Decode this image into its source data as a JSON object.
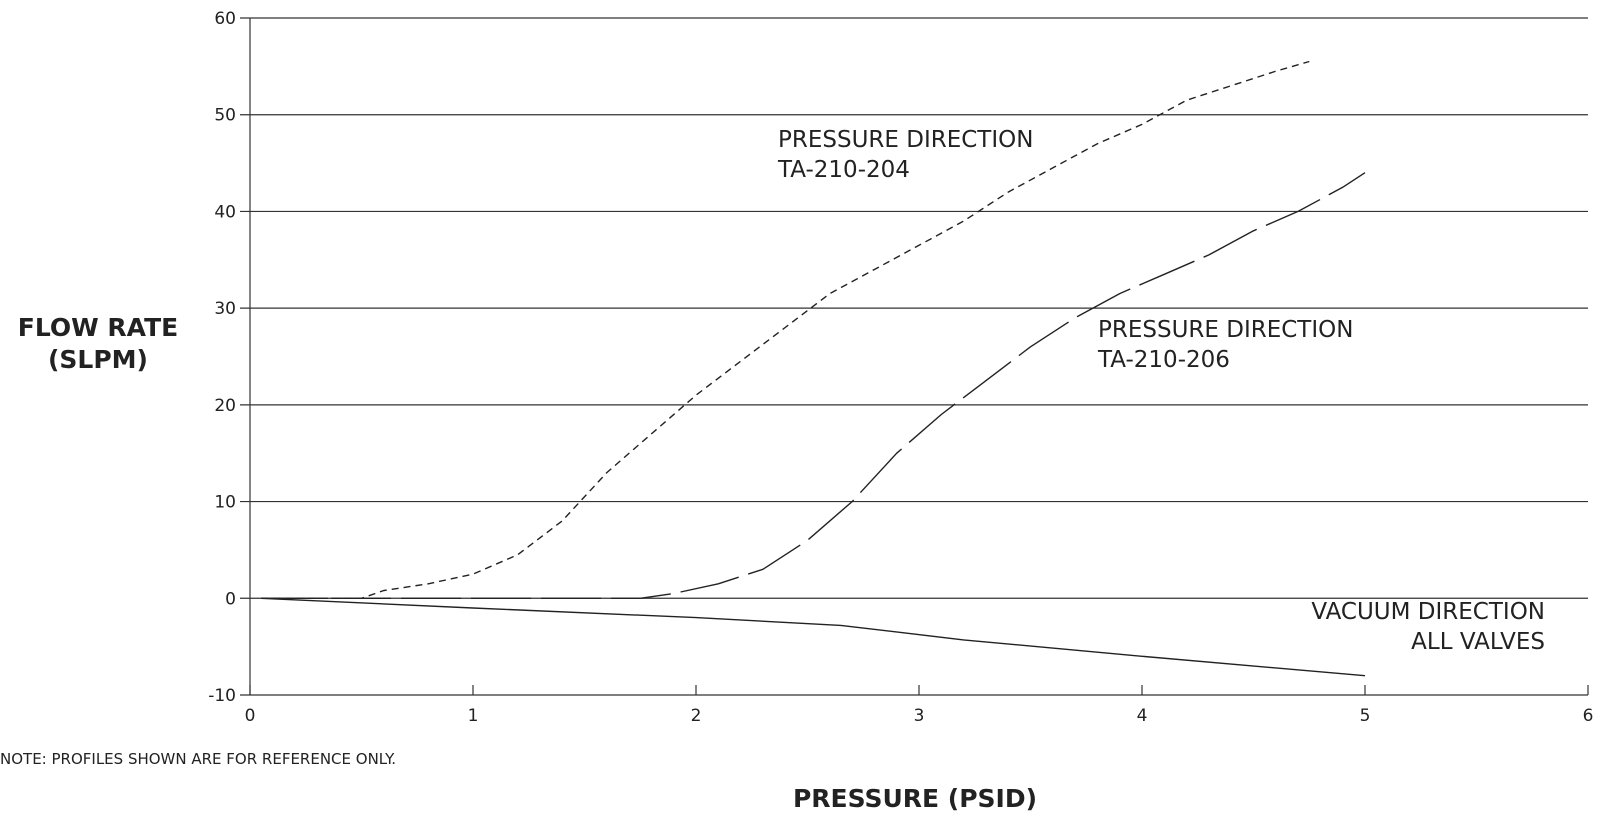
{
  "chart_data": {
    "type": "line",
    "xlabel": "PRESSURE (PSID)",
    "ylabel_line1": "FLOW RATE",
    "ylabel_line2": "(SLPM)",
    "xlim": [
      0,
      6
    ],
    "ylim": [
      -10,
      60
    ],
    "x_ticks": [
      0,
      1,
      2,
      3,
      4,
      5,
      6
    ],
    "y_ticks": [
      -10,
      0,
      10,
      20,
      30,
      40,
      50,
      60
    ],
    "grid": "horizontal",
    "note": "NOTE: PROFILES SHOWN ARE FOR REFERENCE ONLY.",
    "series": [
      {
        "label_line1": "PRESSURE DIRECTION",
        "label_line2": "TA-210-204",
        "style": "dashed",
        "x": [
          0.05,
          0.5,
          0.6,
          0.8,
          1.0,
          1.2,
          1.4,
          1.6,
          1.8,
          2.0,
          2.2,
          2.4,
          2.6,
          2.8,
          3.0,
          3.2,
          3.4,
          3.6,
          3.8,
          4.0,
          4.2,
          4.4,
          4.6,
          4.75
        ],
        "y": [
          0,
          0,
          0.8,
          1.5,
          2.5,
          4.5,
          8,
          13,
          17,
          21,
          24.5,
          28,
          31.5,
          34,
          36.5,
          39,
          42,
          44.5,
          47,
          49,
          51.5,
          53,
          54.5,
          55.5
        ]
      },
      {
        "label_line1": "PRESSURE DIRECTION",
        "label_line2": "TA-210-206",
        "style": "long-dash",
        "x": [
          0.05,
          1.75,
          1.9,
          2.1,
          2.3,
          2.5,
          2.7,
          2.9,
          3.1,
          3.3,
          3.5,
          3.7,
          3.9,
          4.1,
          4.3,
          4.5,
          4.7,
          4.9,
          5.0
        ],
        "y": [
          0,
          0,
          0.5,
          1.5,
          3,
          6,
          10,
          15,
          19,
          22.5,
          26,
          29,
          31.5,
          33.5,
          35.5,
          38,
          40,
          42.5,
          44
        ]
      },
      {
        "label_line1": "VACUUM DIRECTION",
        "label_line2": "ALL VALVES",
        "style": "solid",
        "x": [
          0.05,
          1.0,
          2.0,
          2.65,
          3.2,
          4.0,
          5.0
        ],
        "y": [
          0,
          -1.0,
          -2.0,
          -2.8,
          -4.3,
          -6.0,
          -8.0
        ]
      }
    ]
  }
}
